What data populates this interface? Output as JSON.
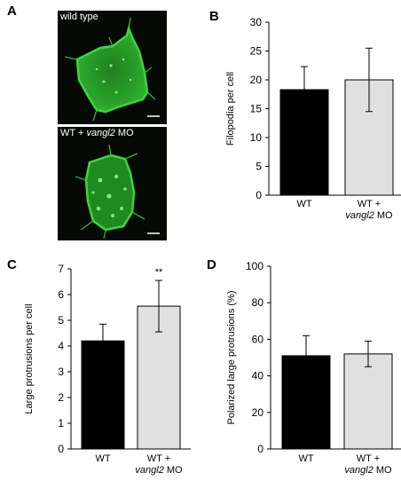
{
  "panels": {
    "a": "A",
    "b": "B",
    "c": "C",
    "d": "D"
  },
  "micrographs": {
    "top_label": "wild type",
    "bottom_label_prefix": "WT + ",
    "bottom_label_gene": "vangl2",
    "bottom_label_suffix": " MO",
    "cell_color": "#2fb52f"
  },
  "chart_data": [
    {
      "id": "B",
      "type": "bar",
      "categories": [
        "WT",
        "WT + vangl2 MO"
      ],
      "series": [
        {
          "values": [
            18.3,
            20.0
          ]
        }
      ],
      "errors": [
        4.0,
        5.5
      ],
      "ylabel": "Filopodia per cell",
      "ylim": [
        0,
        30
      ],
      "yticks": [
        0,
        5,
        10,
        15,
        20,
        25,
        30
      ],
      "bar_colors": [
        "#000000",
        "#e0e0e0"
      ],
      "grid": false
    },
    {
      "id": "C",
      "type": "bar",
      "categories": [
        "WT",
        "WT + vangl2 MO"
      ],
      "series": [
        {
          "values": [
            4.2,
            5.55
          ]
        }
      ],
      "errors": [
        0.65,
        1.0
      ],
      "annotation": "**",
      "ylabel": "Large protrusions per cell",
      "ylim": [
        0,
        7
      ],
      "yticks": [
        0,
        1,
        2,
        3,
        4,
        5,
        6,
        7
      ],
      "bar_colors": [
        "#000000",
        "#e0e0e0"
      ],
      "grid": false
    },
    {
      "id": "D",
      "type": "bar",
      "categories": [
        "WT",
        "WT + vangl2 MO"
      ],
      "series": [
        {
          "values": [
            51,
            52
          ]
        }
      ],
      "errors": [
        11,
        7
      ],
      "ylabel": "Polarized large protrusions (%)",
      "ylim": [
        0,
        100
      ],
      "yticks": [
        0,
        20,
        40,
        60,
        80,
        100
      ],
      "bar_colors": [
        "#000000",
        "#e0e0e0"
      ],
      "grid": false
    }
  ]
}
